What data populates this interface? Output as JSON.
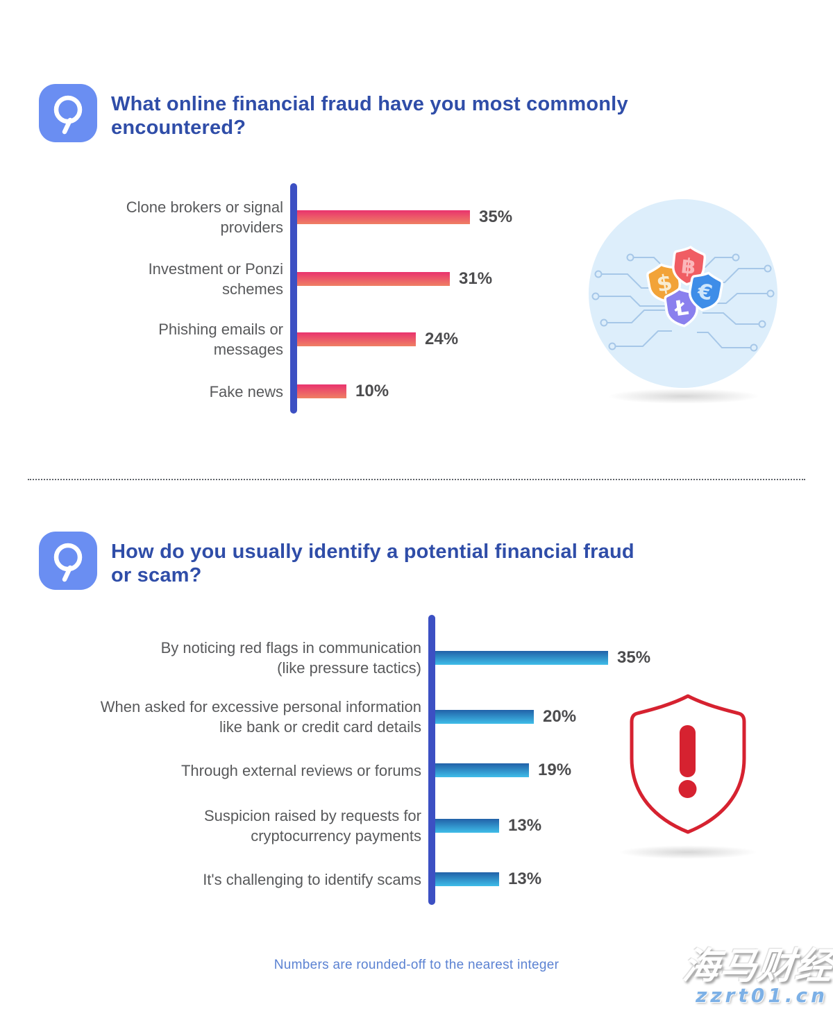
{
  "q1": {
    "icon": "magnifier-q-icon",
    "title": "What online financial fraud have you most commonly\nencountered?",
    "illustration": {
      "name": "currency-shields-circuit",
      "background_circle_color": "#ddeefb",
      "circuit_line_color": "#a6c7e8",
      "shields": [
        {
          "symbol": "$",
          "color": "#f2a338",
          "name": "dollar-shield"
        },
        {
          "symbol": "฿",
          "color": "#f05d63",
          "name": "bitcoin-shield"
        },
        {
          "symbol": "€",
          "color": "#3e8de8",
          "name": "euro-shield"
        },
        {
          "symbol": "Ł",
          "color": "#8a80ee",
          "name": "litecoin-shield"
        }
      ]
    }
  },
  "q2": {
    "icon": "magnifier-q-icon",
    "title": "How do you usually identify a potential financial fraud\nor scam?",
    "illustration": {
      "name": "alert-shield",
      "outline_color": "#d62230",
      "symbol": "exclamation-mark"
    }
  },
  "chart_data": [
    {
      "type": "bar",
      "orientation": "horizontal",
      "title": "What online financial fraud have you most commonly encountered?",
      "categories": [
        "Clone brokers or signal\nproviders",
        "Investment or Ponzi\nschemes",
        "Phishing emails or\nmessages",
        "Fake news"
      ],
      "values": [
        35,
        31,
        24,
        10
      ],
      "data_labels": [
        "35%",
        "31%",
        "24%",
        "10%"
      ],
      "unit": "%",
      "xlim": [
        0,
        40
      ],
      "grid": false,
      "legend": false,
      "bar_gradient": [
        "#e9336e",
        "#ef8064"
      ],
      "axis_color": "#3c50c3",
      "label_color": "#58595b",
      "value_color": "#4c4c4e"
    },
    {
      "type": "bar",
      "orientation": "horizontal",
      "title": "How do you usually identify a potential financial fraud or scam?",
      "categories": [
        "By noticing red flags in communication\n(like pressure tactics)",
        "When asked for excessive personal information\nlike bank or credit card details",
        "Through external reviews or forums",
        "Suspicion raised by requests for\ncryptocurrency payments",
        "It's challenging to identify scams"
      ],
      "values": [
        35,
        20,
        19,
        13,
        13
      ],
      "data_labels": [
        "35%",
        "20%",
        "19%",
        "13%",
        "13%"
      ],
      "unit": "%",
      "xlim": [
        0,
        40
      ],
      "grid": false,
      "legend": false,
      "bar_gradient": [
        "#2161a8",
        "#3fbde9"
      ],
      "axis_color": "#3c50c3",
      "label_color": "#58595b",
      "value_color": "#4c4c4e"
    }
  ],
  "footer": {
    "note": "Numbers are rounded-off to the nearest integer"
  },
  "watermark": {
    "line1": "海马财经",
    "line2": "zzrt01.cn"
  },
  "colors": {
    "title_blue": "#2f4da8",
    "question_icon_bg": "#6a8ef2",
    "footer_blue": "#5b82d2",
    "divider_gray": "#5f6368",
    "watermark_blue": "#7cb0e6"
  }
}
